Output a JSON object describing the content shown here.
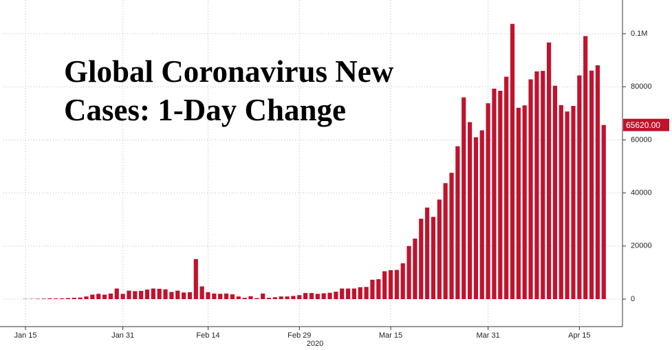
{
  "chart_data": {
    "type": "bar",
    "title": "Global Coronavirus New Cases: 1-Day Change",
    "year_label": "2020",
    "categories": [
      null,
      null,
      null,
      "Jan 15",
      null,
      null,
      null,
      null,
      null,
      null,
      null,
      null,
      null,
      null,
      null,
      null,
      null,
      null,
      null,
      "Jan 31",
      null,
      null,
      null,
      null,
      null,
      null,
      null,
      null,
      null,
      null,
      null,
      null,
      null,
      "Feb 14",
      null,
      null,
      null,
      null,
      null,
      null,
      null,
      null,
      null,
      null,
      null,
      null,
      null,
      null,
      "Feb 29",
      null,
      null,
      null,
      null,
      null,
      null,
      null,
      null,
      null,
      null,
      null,
      null,
      null,
      null,
      "Mar 15",
      null,
      null,
      null,
      null,
      null,
      null,
      null,
      null,
      null,
      null,
      null,
      null,
      null,
      null,
      null,
      "Mar 31",
      null,
      null,
      null,
      null,
      null,
      null,
      null,
      null,
      null,
      null,
      null,
      null,
      null,
      null,
      "Apr 15",
      null,
      null,
      null,
      null
    ],
    "values": [
      0,
      0,
      0,
      100,
      100,
      150,
      200,
      300,
      250,
      300,
      400,
      500,
      600,
      1000,
      1700,
      2000,
      1700,
      2100,
      4000,
      2000,
      3200,
      3000,
      3100,
      3600,
      4000,
      3900,
      3700,
      2700,
      3200,
      2500,
      2600,
      15100,
      4800,
      2600,
      2100,
      2000,
      2100,
      1800,
      1000,
      500,
      1100,
      400,
      2100,
      500,
      700,
      1000,
      1000,
      1200,
      1500,
      2300,
      2300,
      2000,
      2200,
      2400,
      2800,
      4000,
      4000,
      4000,
      4500,
      4600,
      7300,
      7500,
      10500,
      10900,
      11000,
      13500,
      20000,
      22800,
      30300,
      34500,
      31000,
      37500,
      43700,
      47600,
      57600,
      76000,
      66700,
      61000,
      63600,
      73800,
      79300,
      78500,
      83800,
      103700,
      72100,
      73000,
      82800,
      85800,
      86000,
      96700,
      80400,
      73100,
      70700,
      72800,
      84300,
      99100,
      86100,
      88100,
      65620
    ],
    "value_labels": [
      null,
      null,
      null,
      null,
      null,
      null,
      null,
      null,
      null,
      null,
      null,
      null,
      null,
      null,
      null,
      null,
      null,
      null,
      null,
      null,
      null,
      null,
      null,
      null,
      null,
      null,
      null,
      null,
      null,
      null,
      null,
      null,
      null,
      null,
      null,
      null,
      null,
      null,
      null,
      null,
      null,
      null,
      null,
      null,
      null,
      null,
      null,
      null,
      null,
      null,
      null,
      null,
      null,
      null,
      null,
      null,
      null,
      null,
      null,
      null,
      null,
      null,
      null,
      null,
      null,
      null,
      null,
      null,
      null,
      null,
      null,
      null,
      null,
      null,
      null,
      null,
      null,
      null,
      null,
      null,
      null,
      null,
      null,
      null,
      null,
      null,
      null,
      null,
      null,
      null,
      null,
      null,
      null,
      null,
      null,
      null,
      null,
      null,
      "65620.00"
    ],
    "color": "#c0132d",
    "ylim": [
      -10360,
      112700
    ],
    "yticks": [
      0,
      20000,
      40000,
      60000,
      80000,
      {
        "value": 100000,
        "label": "0.1M"
      }
    ],
    "grid": true
  }
}
